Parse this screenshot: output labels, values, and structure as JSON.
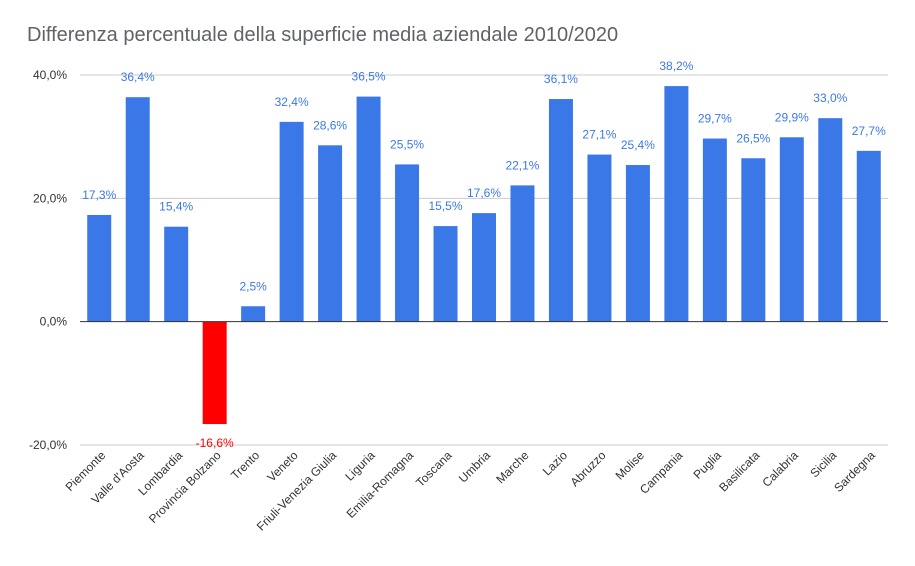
{
  "chart_data": {
    "type": "bar",
    "title": "Differenza percentuale della superficie media aziendale 2010/2020",
    "xlabel": "",
    "ylabel": "",
    "ylim": [
      -20,
      40
    ],
    "yticks": [
      "40,0%",
      "20,0%",
      "0,0%",
      "-20,0%"
    ],
    "ytick_values": [
      40,
      20,
      0,
      -20
    ],
    "grid": true,
    "legend": "none",
    "categories": [
      "Piemonte",
      "Valle d'Aosta",
      "Lombardia",
      "Provincia Bolzano",
      "Trento",
      "Veneto",
      "Friuli-Venezia Giulia",
      "Liguria",
      "Emilia-Romagna",
      "Toscana",
      "Umbria",
      "Marche",
      "Lazio",
      "Abruzzo",
      "Molise",
      "Campania",
      "Puglia",
      "Basilicata",
      "Calabria",
      "Sicilia",
      "Sardegna"
    ],
    "values": [
      17.3,
      36.4,
      15.4,
      -16.6,
      2.5,
      32.4,
      28.6,
      36.5,
      25.5,
      15.5,
      17.6,
      22.1,
      36.1,
      27.1,
      25.4,
      38.2,
      29.7,
      26.5,
      29.9,
      33.0,
      27.7
    ],
    "data_labels": [
      "17,3%",
      "36,4%",
      "15,4%",
      "-16,6%",
      "2,5%",
      "32,4%",
      "28,6%",
      "36,5%",
      "25,5%",
      "15,5%",
      "17,6%",
      "22,1%",
      "36,1%",
      "27,1%",
      "25,4%",
      "38,2%",
      "29,7%",
      "26,5%",
      "29,9%",
      "33,0%",
      "27,7%"
    ],
    "colors": {
      "positive": "#3b78e7",
      "negative": "#ff0000",
      "positive_label": "#3b78e7",
      "negative_label": "#ff0000",
      "grid": "#cccccc",
      "zero_line": "#333333"
    }
  }
}
